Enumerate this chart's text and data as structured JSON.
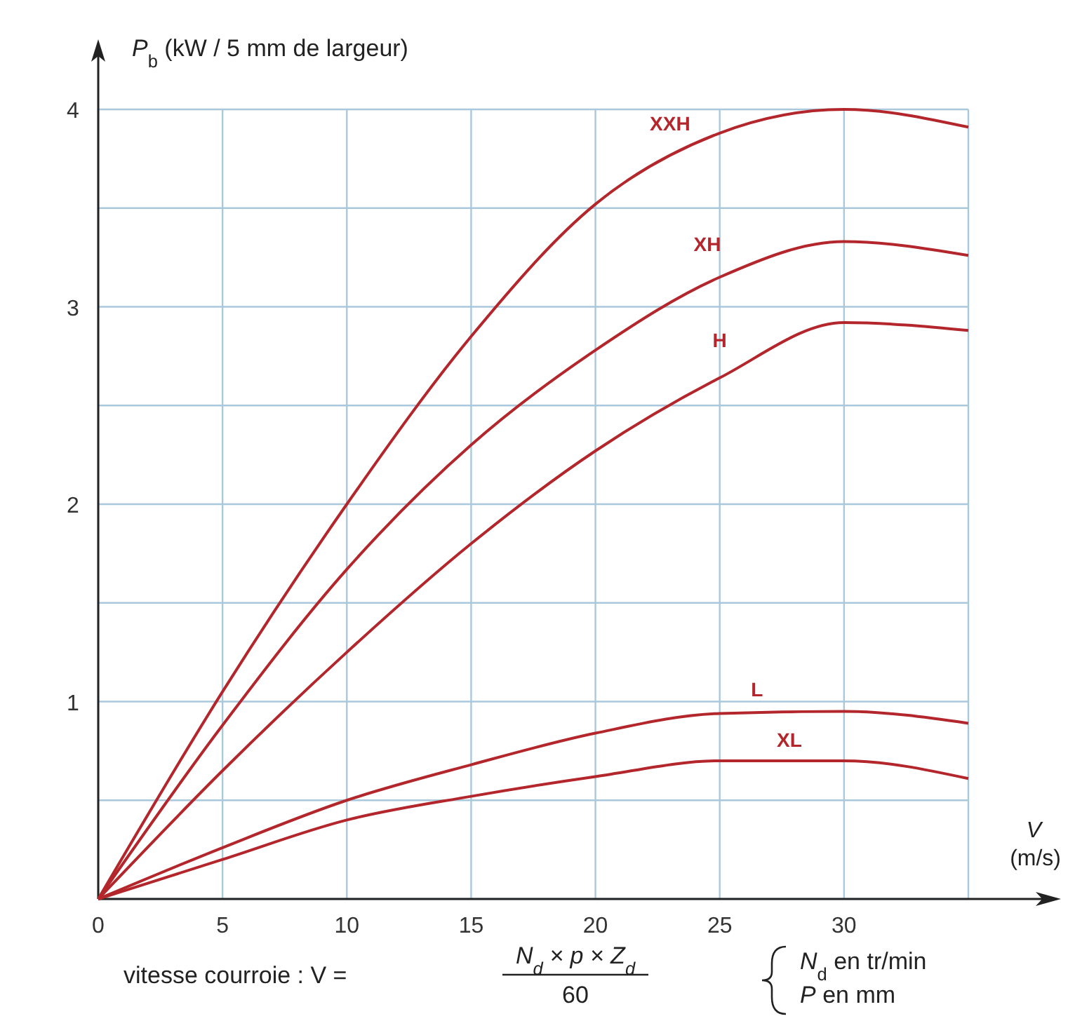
{
  "chart_data": {
    "type": "line",
    "ylabel": "P$_{b}$ (kW / 5 mm de largeur)",
    "xlabel": "V (m/s)",
    "x": [
      0,
      5,
      10,
      15,
      20,
      25,
      30,
      35
    ],
    "series": [
      {
        "name": "XXH",
        "color": "#b3262b",
        "values": [
          0,
          1.05,
          2.0,
          2.85,
          3.52,
          3.88,
          4.0,
          3.91
        ]
      },
      {
        "name": "XH",
        "color": "#b3262b",
        "values": [
          0,
          0.88,
          1.67,
          2.3,
          2.78,
          3.15,
          3.33,
          3.26
        ]
      },
      {
        "name": "H",
        "color": "#b3262b",
        "values": [
          0,
          0.65,
          1.25,
          1.8,
          2.27,
          2.64,
          2.92,
          2.88
        ]
      },
      {
        "name": "L",
        "color": "#b3262b",
        "values": [
          0,
          0.26,
          0.5,
          0.68,
          0.84,
          0.94,
          0.95,
          0.89
        ]
      },
      {
        "name": "XL",
        "color": "#b3262b",
        "values": [
          0,
          0.2,
          0.4,
          0.52,
          0.62,
          0.7,
          0.7,
          0.61
        ]
      }
    ],
    "xlim": [
      0,
      35
    ],
    "ylim": [
      0,
      4
    ],
    "xticks": [
      0,
      5,
      10,
      15,
      20,
      25,
      30,
      {
        "value": 35,
        "label": null
      }
    ],
    "yticks": [
      {
        "value": 0,
        "label": null
      },
      {
        "value": 0.5,
        "label": null
      },
      1,
      {
        "value": 1.5,
        "label": null
      },
      2,
      {
        "value": 2.5,
        "label": null
      },
      3,
      {
        "value": 3.5,
        "label": null
      },
      4
    ],
    "grid": true,
    "legend": false,
    "marker": "none",
    "line_style": "solid",
    "annotations": [
      "vitesse courroie : V =",
      "N$_{d}$ × p × Z$_{d}$",
      "60",
      "N$_{d}$ en tr/min",
      "P  en mm"
    ]
  }
}
